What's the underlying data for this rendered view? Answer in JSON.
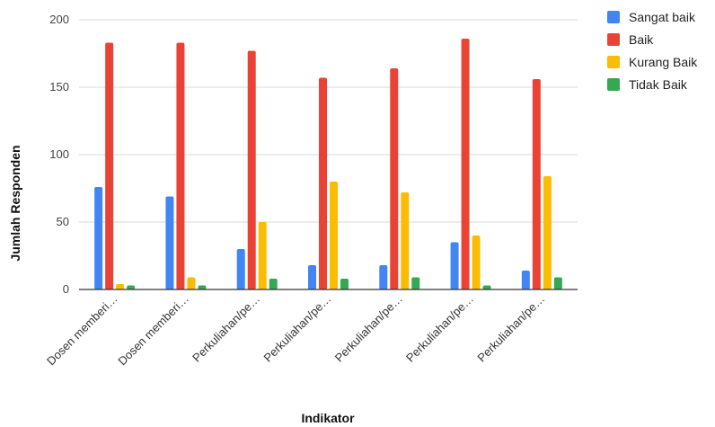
{
  "chart_data": {
    "type": "bar",
    "xlabel": "Indikator",
    "ylabel": "Jumlah Responden",
    "ylim": [
      0,
      200
    ],
    "yticks": [
      0,
      50,
      100,
      150,
      200
    ],
    "grid": true,
    "legend_position": "right",
    "categories": [
      "Dosen memberi…",
      "Dosen memberi…",
      "Perkuliahan/pe…",
      "Perkuliahan/pe…",
      "Perkuliahan/pe…",
      "Perkuliahan/pe…",
      "Perkuliahan/pe…"
    ],
    "series": [
      {
        "name": "Sangat baik",
        "color": "#4285f4",
        "values": [
          76,
          69,
          30,
          18,
          18,
          35,
          14
        ]
      },
      {
        "name": "Baik",
        "color": "#ea4335",
        "values": [
          183,
          183,
          177,
          157,
          164,
          186,
          156
        ]
      },
      {
        "name": "Kurang Baik",
        "color": "#fbbc04",
        "values": [
          4,
          9,
          50,
          80,
          72,
          40,
          84
        ]
      },
      {
        "name": "Tidak Baik",
        "color": "#34a853",
        "values": [
          3,
          3,
          8,
          8,
          9,
          3,
          9
        ]
      }
    ]
  }
}
